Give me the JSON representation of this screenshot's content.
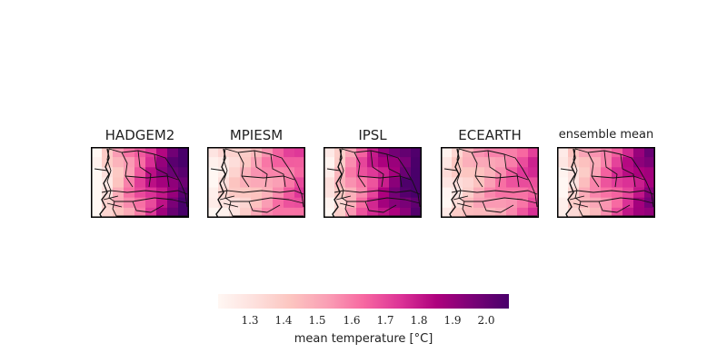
{
  "panels": [
    {
      "title": "HADGEM2",
      "west": 1.2,
      "east": 2.08
    },
    {
      "title": "MPIESM",
      "west": 1.25,
      "east": 1.72
    },
    {
      "title": "IPSL",
      "west": 1.3,
      "east": 2.12
    },
    {
      "title": "ECEARTH",
      "west": 1.3,
      "east": 1.75
    },
    {
      "title": "ensemble mean",
      "west": 1.25,
      "east": 1.95
    }
  ],
  "colorbar": {
    "min": 1.22,
    "max": 2.08,
    "ticks": [
      "1.3",
      "1.4",
      "1.5",
      "1.6",
      "1.7",
      "1.8",
      "1.9",
      "2.0"
    ],
    "label": "mean temperature [°C]",
    "colormap": "RdPu"
  }
}
